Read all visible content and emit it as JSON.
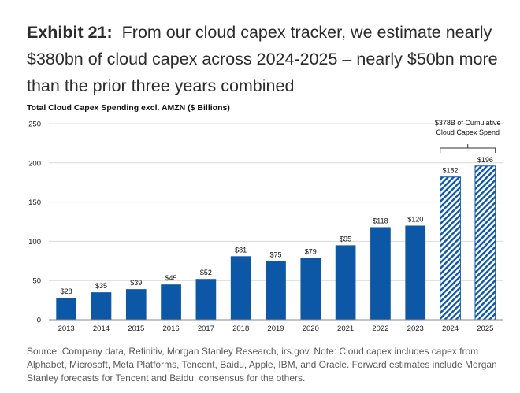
{
  "header": {
    "exhibit": "Exhibit 21:",
    "headline": "From our cloud capex tracker, we estimate nearly $380bn of cloud capex across 2024-2025 – nearly $50bn more than the prior three years combined"
  },
  "footer": {
    "source": "Source: Company data, Refinitiv, Morgan Stanley Research, irs.gov. Note: Cloud capex includes capex from Alphabet, Microsoft, Meta Platforms, Tencent, Baidu, Apple, IBM, and Oracle. Forward estimates include Morgan Stanley forecasts for Tencent and Baidu, consensus for the others."
  },
  "chart_data": {
    "type": "bar",
    "title": "Total Cloud Capex Spending excl. AMZN ($ Billions)",
    "categories": [
      "2013",
      "2014",
      "2015",
      "2016",
      "2017",
      "2018",
      "2019",
      "2020",
      "2021",
      "2022",
      "2023",
      "2024",
      "2025"
    ],
    "values": [
      28,
      35,
      39,
      45,
      52,
      81,
      75,
      79,
      95,
      118,
      120,
      182,
      196
    ],
    "data_labels": [
      "$28",
      "$35",
      "$39",
      "$45",
      "$52",
      "$81",
      "$75",
      "$79",
      "$95",
      "$118",
      "$120",
      "$182",
      "$196"
    ],
    "estimate": [
      false,
      false,
      false,
      false,
      false,
      false,
      false,
      false,
      false,
      false,
      false,
      true,
      true
    ],
    "ylim": [
      0,
      250
    ],
    "yticks": [
      0,
      50,
      100,
      150,
      200,
      250
    ],
    "grid": true,
    "annotation": {
      "line1": "$378B of Cumulative",
      "line2": "Cloud Capex Spend",
      "spans": [
        "2024",
        "2025"
      ]
    },
    "colors": {
      "bar": "#0d57a7",
      "grid": "#d9d9d9",
      "axis": "#888888"
    }
  }
}
